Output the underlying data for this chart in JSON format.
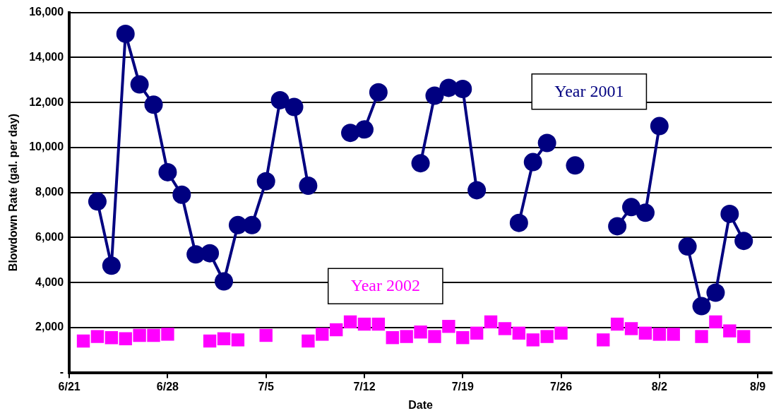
{
  "chart_data": {
    "type": "line",
    "xlabel": "Date",
    "ylabel": "Blowdown Rate (gal. per day)",
    "xlim": [
      "--06-21",
      "--08-10"
    ],
    "xticks": [
      {
        "value": "--06-21",
        "label": "6/21"
      },
      {
        "value": "--06-28",
        "label": "6/28"
      },
      {
        "value": "--07-05",
        "label": "7/5"
      },
      {
        "value": "--07-12",
        "label": "7/12"
      },
      {
        "value": "--07-19",
        "label": "7/19"
      },
      {
        "value": "--07-26",
        "label": "7/26"
      },
      {
        "value": "--08-02",
        "label": "8/2"
      },
      {
        "value": "--08-09",
        "label": "8/9"
      }
    ],
    "ylim": [
      0,
      16000
    ],
    "yticks": [
      {
        "value": 0,
        "label": "-"
      },
      {
        "value": 2000,
        "label": "2,000"
      },
      {
        "value": 4000,
        "label": "4,000"
      },
      {
        "value": 6000,
        "label": "6,000"
      },
      {
        "value": 8000,
        "label": "8,000"
      },
      {
        "value": 10000,
        "label": "10,000"
      },
      {
        "value": 12000,
        "label": "12,000"
      },
      {
        "value": 14000,
        "label": "14,000"
      },
      {
        "value": 16000,
        "label": "16,000"
      }
    ],
    "grid": "y",
    "legend": false,
    "line_style": "solid",
    "series": [
      {
        "name": "Year 2001",
        "marker": "circle",
        "color": "#000080",
        "x": [
          "--06-23",
          "--06-24",
          "--06-25",
          "--06-26",
          "--06-27",
          "--06-28",
          "--06-29",
          "--06-30",
          "--07-01",
          "--07-02",
          "--07-03",
          "--07-04",
          "--07-05",
          "--07-06",
          "--07-07",
          "--07-08",
          "--07-10",
          "--07-11",
          "--07-12",
          "--07-13",
          "--07-15",
          "--07-16",
          "--07-17",
          "--07-18",
          "--07-19",
          "--07-20",
          "--07-22",
          "--07-23",
          "--07-24",
          "--07-25",
          "--07-26",
          "--07-27",
          "--07-29",
          "--07-30",
          "--07-31",
          "--08-01",
          "--08-02",
          "--08-03",
          "--08-04",
          "--08-05",
          "--08-06",
          "--08-07",
          "--08-08"
        ],
        "values": [
          7600,
          4750,
          15050,
          12800,
          11900,
          8900,
          7900,
          5250,
          5300,
          4050,
          6550,
          6550,
          8500,
          12100,
          11800,
          8300,
          null,
          10650,
          10800,
          12450,
          null,
          9300,
          12300,
          12650,
          12600,
          8100,
          null,
          6650,
          9350,
          10200,
          null,
          9200,
          null,
          6500,
          7350,
          7100,
          10950,
          null,
          5600,
          2950,
          3550,
          7050,
          5850
        ]
      },
      {
        "name": "Year 2002",
        "type": "scatter",
        "marker": "square",
        "color": "#ff00ff",
        "x": [
          "--06-22",
          "--06-23",
          "--06-24",
          "--06-25",
          "--06-26",
          "--06-27",
          "--06-28",
          "--07-01",
          "--07-02",
          "--07-03",
          "--07-05",
          "--07-08",
          "--07-09",
          "--07-10",
          "--07-11",
          "--07-12",
          "--07-13",
          "--07-14",
          "--07-15",
          "--07-16",
          "--07-17",
          "--07-18",
          "--07-19",
          "--07-20",
          "--07-21",
          "--07-22",
          "--07-23",
          "--07-24",
          "--07-25",
          "--07-26",
          "--07-29",
          "--07-30",
          "--07-31",
          "--08-01",
          "--08-02",
          "--08-03",
          "--08-05",
          "--08-06",
          "--08-07",
          "--08-08"
        ],
        "values": [
          1400,
          1600,
          1550,
          1500,
          1650,
          1650,
          1700,
          1400,
          1500,
          1450,
          1650,
          1400,
          1700,
          1900,
          2250,
          2150,
          2150,
          1550,
          1600,
          1800,
          1600,
          2050,
          1550,
          1750,
          2250,
          1950,
          1750,
          1450,
          1600,
          1750,
          1450,
          2150,
          1950,
          1750,
          1700,
          1700,
          1600,
          2250,
          1850,
          1600
        ]
      }
    ]
  }
}
